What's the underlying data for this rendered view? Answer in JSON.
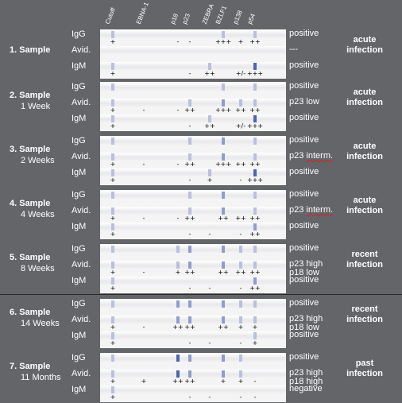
{
  "headers": [
    "Cutoff",
    "EBNA-1",
    "p18",
    "p23",
    "ZEBRA",
    "BZLF1",
    "p138",
    "p54"
  ],
  "band_color_light": "#b8c0de",
  "band_color_mid": "#8f9ccf",
  "band_color_dark": "#4d63b2",
  "samples": [
    {
      "title": "1. Sample",
      "subtitle": "",
      "interpretation": [
        "acute",
        "infection"
      ],
      "rows": [
        {
          "label": "IgG",
          "result": "positive",
          "result_mark": "",
          "bands": [
            [
              "Cutoff",
              "l"
            ],
            [
              "BZLF1",
              "l"
            ],
            [
              "p54",
              "l"
            ]
          ],
          "symbols": [
            [
              "Cutoff",
              "+"
            ],
            [
              "p18",
              "-"
            ],
            [
              "p23",
              "-"
            ],
            [
              "BZLF1",
              "+++"
            ],
            [
              "p138",
              "+"
            ],
            [
              "p54",
              "++"
            ]
          ]
        },
        {
          "label": "Avid.",
          "result": "---",
          "result_mark": "",
          "bands": [],
          "symbols": []
        },
        {
          "label": "IgM",
          "result": "positive",
          "result_mark": "",
          "bands": [
            [
              "Cutoff",
              "l"
            ],
            [
              "ZEBRA",
              "l"
            ],
            [
              "p54",
              "d"
            ]
          ],
          "symbols": [
            [
              "Cutoff",
              "+"
            ],
            [
              "p23",
              "-"
            ],
            [
              "ZEBRA",
              "++"
            ],
            [
              "p138",
              "+/-"
            ],
            [
              "p54",
              "+++"
            ]
          ]
        }
      ]
    },
    {
      "title": "2. Sample",
      "subtitle": "1 Week",
      "interpretation": [
        "acute",
        "infection"
      ],
      "rows": [
        {
          "label": "IgG",
          "result": "positive",
          "result_mark": "",
          "bands": [
            [
              "Cutoff",
              "l"
            ],
            [
              "BZLF1",
              "l"
            ],
            [
              "p54",
              "l"
            ]
          ],
          "symbols": []
        },
        {
          "label": "Avid.",
          "result": "p23 low",
          "result_mark": "",
          "bands": [
            [
              "Cutoff",
              "l"
            ],
            [
              "p23",
              "l"
            ],
            [
              "BZLF1",
              "m"
            ],
            [
              "p138",
              "l"
            ],
            [
              "p54",
              "l"
            ]
          ],
          "symbols": [
            [
              "Cutoff",
              "+"
            ],
            [
              "EBNA-1",
              "-"
            ],
            [
              "p18",
              "-"
            ],
            [
              "p23",
              "++"
            ],
            [
              "BZLF1",
              "+++"
            ],
            [
              "p138",
              "++"
            ],
            [
              "p54",
              "++"
            ]
          ]
        },
        {
          "label": "IgM",
          "result": "positive",
          "result_mark": "",
          "bands": [
            [
              "Cutoff",
              "l"
            ],
            [
              "ZEBRA",
              "l"
            ],
            [
              "p54",
              "d"
            ]
          ],
          "symbols": [
            [
              "Cutoff",
              "+"
            ],
            [
              "p23",
              "-"
            ],
            [
              "ZEBRA",
              "++"
            ],
            [
              "p138",
              "+/-"
            ],
            [
              "p54",
              "+++"
            ]
          ]
        }
      ]
    },
    {
      "title": "3. Sample",
      "subtitle": "2 Weeks",
      "interpretation": [
        "acute",
        "infection"
      ],
      "rows": [
        {
          "label": "IgG",
          "result": "positive",
          "result_mark": "",
          "bands": [
            [
              "Cutoff",
              "l"
            ],
            [
              "p23",
              "l"
            ],
            [
              "BZLF1",
              "m"
            ],
            [
              "p54",
              "l"
            ]
          ],
          "symbols": []
        },
        {
          "label": "Avid.",
          "result": "p23 interm.",
          "result_mark": "interm.",
          "bands": [
            [
              "Cutoff",
              "l"
            ],
            [
              "p23",
              "l"
            ],
            [
              "BZLF1",
              "m"
            ],
            [
              "p54",
              "l"
            ]
          ],
          "symbols": [
            [
              "Cutoff",
              "+"
            ],
            [
              "EBNA-1",
              "-"
            ],
            [
              "p18",
              "-"
            ],
            [
              "p23",
              "++"
            ],
            [
              "BZLF1",
              "+++"
            ],
            [
              "p138",
              "++"
            ],
            [
              "p54",
              "++"
            ]
          ]
        },
        {
          "label": "IgM",
          "result": "positive",
          "result_mark": "",
          "bands": [
            [
              "Cutoff",
              "l"
            ],
            [
              "ZEBRA",
              "l"
            ],
            [
              "p54",
              "d"
            ]
          ],
          "symbols": [
            [
              "Cutoff",
              "+"
            ],
            [
              "p23",
              "-"
            ],
            [
              "ZEBRA",
              "+"
            ],
            [
              "p138",
              "-"
            ],
            [
              "p54",
              "+++"
            ]
          ]
        }
      ]
    },
    {
      "title": "4. Sample",
      "subtitle": "4 Weeks",
      "interpretation": [
        "acute",
        "infection"
      ],
      "rows": [
        {
          "label": "IgG",
          "result": "positive",
          "result_mark": "",
          "bands": [
            [
              "Cutoff",
              "l"
            ],
            [
              "p23",
              "l"
            ],
            [
              "BZLF1",
              "m"
            ],
            [
              "p54",
              "l"
            ]
          ],
          "symbols": []
        },
        {
          "label": "Avid.",
          "result": "p23 interm.",
          "result_mark": "interm.",
          "bands": [
            [
              "Cutoff",
              "l"
            ],
            [
              "p23",
              "l"
            ],
            [
              "BZLF1",
              "m"
            ],
            [
              "p54",
              "l"
            ]
          ],
          "symbols": [
            [
              "Cutoff",
              "+"
            ],
            [
              "EBNA-1",
              "-"
            ],
            [
              "p18",
              "-"
            ],
            [
              "p23",
              "++"
            ],
            [
              "BZLF1",
              "++"
            ],
            [
              "p138",
              "++"
            ],
            [
              "p54",
              "++"
            ]
          ]
        },
        {
          "label": "IgM",
          "result": "positive",
          "result_mark": "",
          "bands": [
            [
              "Cutoff",
              "l"
            ],
            [
              "p54",
              "m"
            ]
          ],
          "symbols": [
            [
              "Cutoff",
              "+"
            ],
            [
              "p23",
              "-"
            ],
            [
              "ZEBRA",
              "-"
            ],
            [
              "p138",
              "-"
            ],
            [
              "p54",
              "++"
            ]
          ]
        }
      ]
    },
    {
      "title": "5. Sample",
      "subtitle": "8 Weeks",
      "interpretation": [
        "recent",
        "infection"
      ],
      "rows": [
        {
          "label": "IgG",
          "result": "positive",
          "result_mark": "",
          "bands": [
            [
              "Cutoff",
              "l"
            ],
            [
              "p18",
              "l"
            ],
            [
              "p23",
              "m"
            ],
            [
              "BZLF1",
              "m"
            ],
            [
              "p138",
              "l"
            ],
            [
              "p54",
              "l"
            ]
          ],
          "symbols": []
        },
        {
          "label": "Avid.",
          "result": "p23 high",
          "result_mark": "",
          "second_line": "p18 low",
          "bands": [
            [
              "Cutoff",
              "l"
            ],
            [
              "p18",
              "l"
            ],
            [
              "p23",
              "m"
            ],
            [
              "BZLF1",
              "m"
            ],
            [
              "p138",
              "l"
            ],
            [
              "p54",
              "l"
            ]
          ],
          "symbols": [
            [
              "Cutoff",
              "+"
            ],
            [
              "EBNA-1",
              "-"
            ],
            [
              "p18",
              "+"
            ],
            [
              "p23",
              "++"
            ],
            [
              "BZLF1",
              "++"
            ],
            [
              "p138",
              "++"
            ],
            [
              "p54",
              "++"
            ]
          ]
        },
        {
          "label": "IgM",
          "result": "positive",
          "result_mark": "",
          "bands": [
            [
              "Cutoff",
              "l"
            ],
            [
              "p54",
              "m"
            ]
          ],
          "symbols": [
            [
              "Cutoff",
              "+"
            ],
            [
              "p23",
              "-"
            ],
            [
              "ZEBRA",
              "-"
            ],
            [
              "p138",
              "-"
            ],
            [
              "p54",
              "++"
            ]
          ]
        }
      ]
    },
    {
      "title": "6. Sample",
      "subtitle": "14 Weeks",
      "interpretation": [
        "recent",
        "infection"
      ],
      "rows": [
        {
          "label": "IgG",
          "result": "positive",
          "result_mark": "",
          "bands": [
            [
              "Cutoff",
              "l"
            ],
            [
              "p18",
              "m"
            ],
            [
              "p23",
              "m"
            ],
            [
              "BZLF1",
              "m"
            ],
            [
              "p138",
              "l"
            ],
            [
              "p54",
              "l"
            ]
          ],
          "symbols": []
        },
        {
          "label": "Avid.",
          "result": "p23 high",
          "result_mark": "",
          "second_line": "p18 low",
          "bands": [
            [
              "Cutoff",
              "l"
            ],
            [
              "p18",
              "m"
            ],
            [
              "p23",
              "m"
            ],
            [
              "BZLF1",
              "m"
            ],
            [
              "p138",
              "l"
            ],
            [
              "p54",
              "l"
            ]
          ],
          "symbols": [
            [
              "Cutoff",
              "+"
            ],
            [
              "EBNA-1",
              "-"
            ],
            [
              "p18",
              "++"
            ],
            [
              "p23",
              "++"
            ],
            [
              "BZLF1",
              "++"
            ],
            [
              "p138",
              "+"
            ],
            [
              "p54",
              "+"
            ]
          ]
        },
        {
          "label": "IgM",
          "result": "positive",
          "result_mark": "",
          "bands": [
            [
              "Cutoff",
              "l"
            ],
            [
              "p54",
              "l"
            ]
          ],
          "symbols": [
            [
              "Cutoff",
              "+"
            ],
            [
              "p23",
              "-"
            ],
            [
              "ZEBRA",
              "-"
            ],
            [
              "p138",
              "-"
            ],
            [
              "p54",
              "+"
            ]
          ]
        }
      ]
    },
    {
      "title": "7. Sample",
      "subtitle": "11 Months",
      "interpretation": [
        "past",
        "infection"
      ],
      "rows": [
        {
          "label": "IgG",
          "result": "positive",
          "result_mark": "",
          "bands": [
            [
              "Cutoff",
              "l"
            ],
            [
              "p18",
              "d"
            ],
            [
              "p23",
              "m"
            ],
            [
              "BZLF1",
              "m"
            ],
            [
              "p138",
              "l"
            ]
          ],
          "symbols": []
        },
        {
          "label": "Avid.",
          "result": "p23 high",
          "result_mark": "",
          "second_line": "p18 high",
          "bands": [
            [
              "Cutoff",
              "l"
            ],
            [
              "p18",
              "d"
            ],
            [
              "p23",
              "m"
            ],
            [
              "BZLF1",
              "m"
            ],
            [
              "p138",
              "l"
            ]
          ],
          "symbols": [
            [
              "Cutoff",
              "+"
            ],
            [
              "EBNA-1",
              "+"
            ],
            [
              "p18",
              "++"
            ],
            [
              "p23",
              "++"
            ],
            [
              "BZLF1",
              "+"
            ],
            [
              "p138",
              "+"
            ],
            [
              "p54",
              "-"
            ]
          ]
        },
        {
          "label": "IgM",
          "result": "negative",
          "result_mark": "",
          "bands": [
            [
              "Cutoff",
              "l"
            ]
          ],
          "symbols": [
            [
              "Cutoff",
              "+"
            ],
            [
              "p23",
              "-"
            ],
            [
              "ZEBRA",
              "-"
            ],
            [
              "p138",
              "-"
            ],
            [
              "p54",
              "-"
            ]
          ]
        }
      ]
    }
  ]
}
